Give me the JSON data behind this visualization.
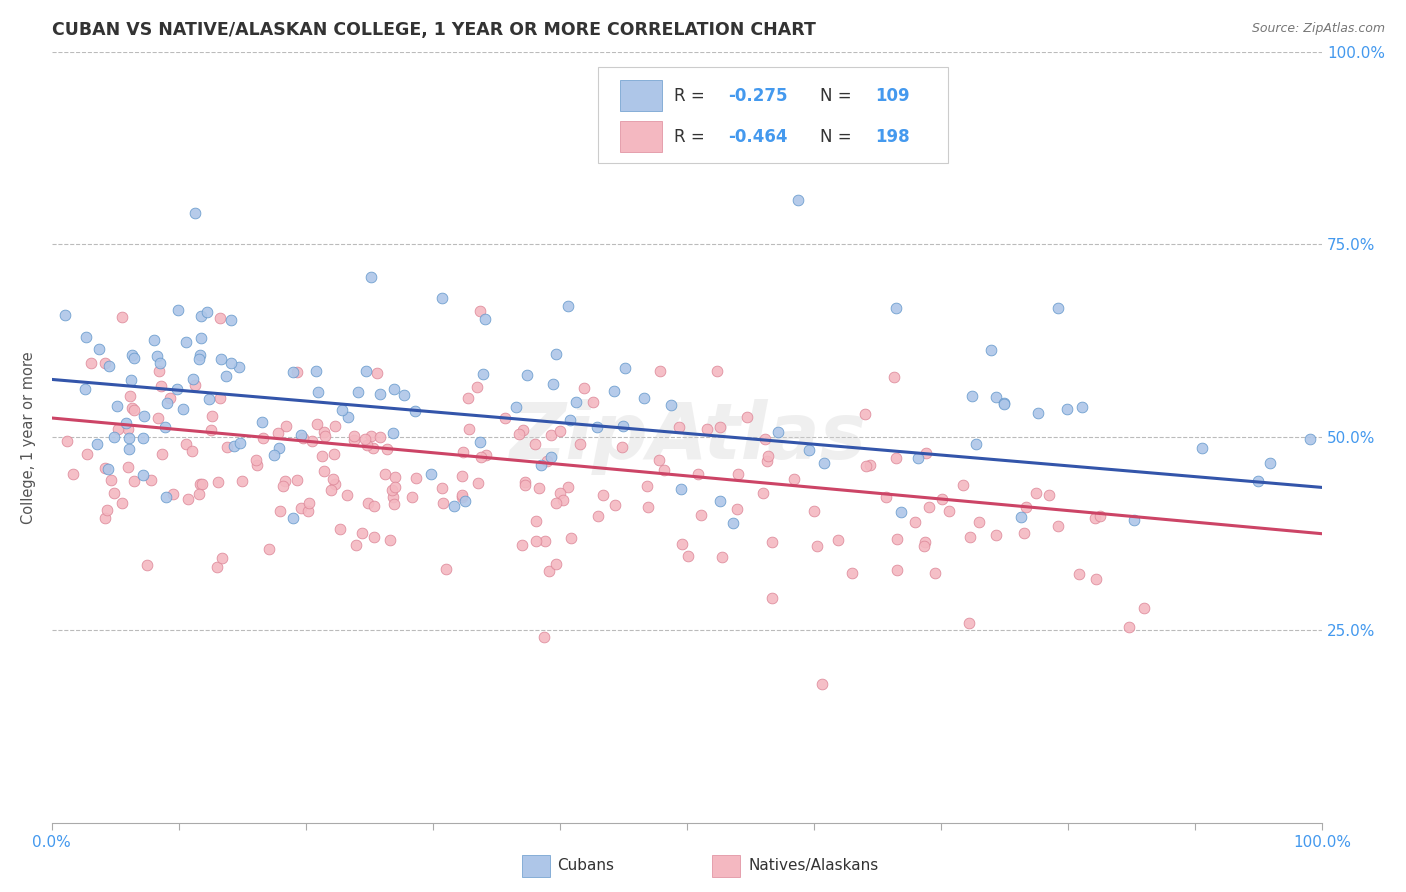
{
  "title": "CUBAN VS NATIVE/ALASKAN COLLEGE, 1 YEAR OR MORE CORRELATION CHART",
  "source": "Source: ZipAtlas.com",
  "ylabel": "College, 1 year or more",
  "cubans_color": "#aec6e8",
  "cubans_edge": "#6699cc",
  "natives_color": "#f4b8c1",
  "natives_edge": "#dd8899",
  "trend_blue": "#3355aa",
  "trend_pink": "#cc4466",
  "R1": -0.275,
  "N1": 109,
  "R2": -0.464,
  "N2": 198,
  "cubans_label": "Cubans",
  "natives_label": "Natives/Alaskans",
  "background": "#ffffff",
  "grid_color": "#bbbbbb",
  "title_color": "#333333",
  "source_color": "#777777",
  "right_axis_color": "#4499ee",
  "watermark": "ZipAtlas",
  "xlim": [
    0.0,
    1.0
  ],
  "ylim": [
    0.0,
    1.0
  ],
  "yticks": [
    0.25,
    0.5,
    0.75,
    1.0
  ],
  "ytick_labels": [
    "25.0%",
    "50.0%",
    "75.0%",
    "100.0%"
  ],
  "xtick_labels_bottom": [
    "0.0%",
    "100.0%"
  ],
  "legend_text_color": "#333333",
  "legend_value_color": "#4499ee",
  "legend_border_color": "#cccccc",
  "blue_trend_start_y": 0.575,
  "blue_trend_end_y": 0.435,
  "pink_trend_start_y": 0.525,
  "pink_trend_end_y": 0.375
}
